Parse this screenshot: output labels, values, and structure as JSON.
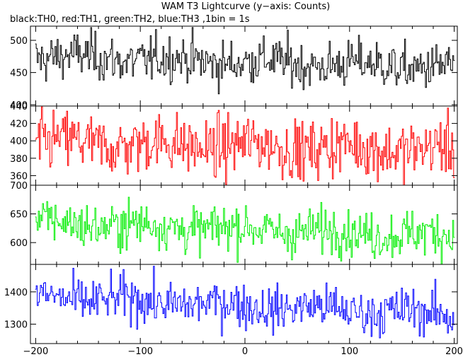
{
  "chart_data": {
    "type": "line",
    "title": "WAM T3 Lightcurve (y−axis: Counts)",
    "subtitle": "black:TH0, red:TH1, green:TH2, blue:TH3 ,1bin = 1s",
    "x_range": [
      -205,
      203
    ],
    "x_ticks": [
      -200,
      -100,
      0,
      100,
      200
    ],
    "x_tick_labels": [
      "−200",
      "−100",
      "0",
      "100",
      "200"
    ],
    "bin_seconds": 1,
    "panels": [
      {
        "series": "TH0",
        "color": "#000000",
        "ylim": [
          398,
          522
        ],
        "yticks": [
          400,
          450,
          500
        ],
        "ytick_labels": [
          "400",
          "450",
          "500"
        ],
        "start_mean": 475,
        "end_mean": 458,
        "noise": 18
      },
      {
        "series": "TH1",
        "color": "#ff0000",
        "ylim": [
          349,
          440
        ],
        "yticks": [
          360,
          380,
          400,
          420,
          440
        ],
        "ytick_labels": [
          "360",
          "380",
          "400",
          "420",
          "440"
        ],
        "start_mean": 398,
        "end_mean": 390,
        "noise": 17
      },
      {
        "series": "TH2",
        "color": "#00ee00",
        "ylim": [
          562,
          700
        ],
        "yticks": [
          600,
          650,
          700
        ],
        "ytick_labels": [
          "600",
          "650",
          "700"
        ],
        "start_mean": 635,
        "end_mean": 612,
        "noise": 20
      },
      {
        "series": "TH3",
        "color": "#0000ff",
        "ylim": [
          1240,
          1485
        ],
        "yticks": [
          1300,
          1400
        ],
        "ytick_labels": [
          "1300",
          "1400"
        ],
        "start_mean": 1385,
        "end_mean": 1330,
        "noise": 35
      }
    ]
  }
}
